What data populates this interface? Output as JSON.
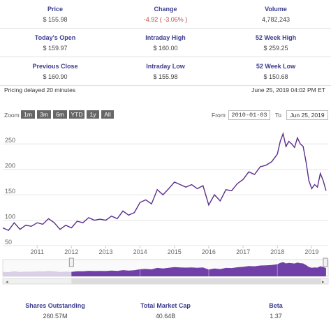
{
  "stats": {
    "row1": [
      {
        "label": "Price",
        "value": "$ 155.98"
      },
      {
        "label": "Change",
        "value": "-4.92 ( -3.06% )"
      },
      {
        "label": "Volume",
        "value": "4,782,243"
      }
    ],
    "row2": [
      {
        "label": "Today's Open",
        "value": "$ 159.97"
      },
      {
        "label": "Intraday High",
        "value": "$ 160.00"
      },
      {
        "label": "52 Week High",
        "value": "$ 259.25"
      }
    ],
    "row3": [
      {
        "label": "Previous Close",
        "value": "$ 160.90"
      },
      {
        "label": "Intraday Low",
        "value": "$ 155.98"
      },
      {
        "label": "52 Week Low",
        "value": "$ 150.68"
      }
    ]
  },
  "delay_note": "Pricing delayed 20 minutes",
  "timestamp": "June 25, 2019 04:02 PM ET",
  "zoom": {
    "label": "Zoom",
    "buttons": [
      "1m",
      "3m",
      "6m",
      "YTD",
      "1y",
      "All"
    ],
    "from_label": "From",
    "from_value": "2010-01-03",
    "to_label": "To",
    "to_value": "Jun 25, 2019"
  },
  "colors": {
    "line": "#5b2d8e",
    "navigator": "#7040a8",
    "navigator_past": "#d9cfe6"
  },
  "bottom": [
    {
      "label": "Shares Outstanding",
      "value": "260.57M"
    },
    {
      "label": "Total Market Cap",
      "value": "40.64B"
    },
    {
      "label": "Beta",
      "value": "1.37"
    }
  ],
  "chart_data": {
    "type": "line",
    "title": "",
    "xlabel": "",
    "ylabel": "",
    "ylim": [
      50,
      275
    ],
    "yticks": [
      50,
      100,
      150,
      200,
      250
    ],
    "xticks": [
      "2011",
      "2012",
      "2013",
      "2014",
      "2015",
      "2016",
      "2017",
      "2018",
      "2019"
    ],
    "grid": "horizontal",
    "series": [
      {
        "x": [
          "2010-01",
          "2010-03",
          "2010-05",
          "2010-07",
          "2010-09",
          "2010-11",
          "2011-01",
          "2011-03",
          "2011-05",
          "2011-07",
          "2011-09",
          "2011-11",
          "2012-01",
          "2012-03",
          "2012-05",
          "2012-07",
          "2012-09",
          "2012-11",
          "2013-01",
          "2013-03",
          "2013-05",
          "2013-07",
          "2013-09",
          "2013-11",
          "2014-01",
          "2014-03",
          "2014-05",
          "2014-07",
          "2014-09",
          "2014-11",
          "2015-01",
          "2015-03",
          "2015-05",
          "2015-07",
          "2015-09",
          "2015-11",
          "2016-01",
          "2016-03",
          "2016-05",
          "2016-07",
          "2016-09",
          "2016-11",
          "2017-01",
          "2017-03",
          "2017-05",
          "2017-07",
          "2017-09",
          "2017-11",
          "2018-01",
          "2018-02",
          "2018-03",
          "2018-04",
          "2018-05",
          "2018-06",
          "2018-07",
          "2018-08",
          "2018-09",
          "2018-10",
          "2018-11",
          "2018-12",
          "2019-01",
          "2019-02",
          "2019-03",
          "2019-04",
          "2019-05",
          "2019-06"
        ],
        "values": [
          85,
          80,
          95,
          82,
          90,
          88,
          95,
          92,
          103,
          95,
          82,
          90,
          85,
          98,
          95,
          105,
          100,
          102,
          100,
          108,
          103,
          118,
          110,
          115,
          135,
          140,
          132,
          160,
          150,
          162,
          175,
          170,
          165,
          170,
          162,
          168,
          130,
          150,
          138,
          160,
          158,
          172,
          180,
          195,
          190,
          205,
          208,
          215,
          230,
          255,
          270,
          245,
          255,
          250,
          243,
          262,
          250,
          245,
          215,
          178,
          162,
          170,
          165,
          192,
          178,
          158
        ]
      }
    ],
    "navigator": {
      "xticks": [
        "2014",
        "2016",
        "2018"
      ]
    }
  }
}
